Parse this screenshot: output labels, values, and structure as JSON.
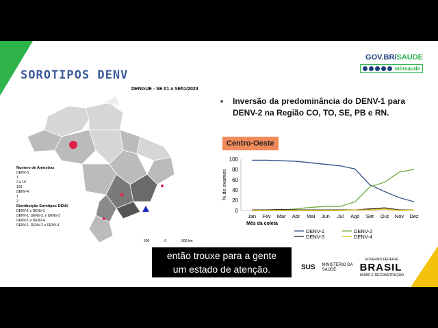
{
  "slide_title": "SOROTIPOS DENV",
  "gov": {
    "prefix": "GOV.BR/",
    "suffix": "SAUDE",
    "handle": "minsaude"
  },
  "map": {
    "title": "DENGUE - SE 01 a SE51/2023",
    "legend_title": "Numero de Amostras",
    "denv3_label": "DENV-3",
    "denv3_items": [
      "1",
      "2 a 10",
      "100"
    ],
    "denv4_label": "DENV-4",
    "denv4_items": [
      "1",
      "2"
    ],
    "dist_label": "Distribuição Sorotipos DENV",
    "dist_items": [
      "DENV-1 e DENV-2",
      "DENV-1, DENV-2, e DENV-3",
      "DENV-1 e DENV-4",
      "DENV-1, DENV-2 e DENV-4"
    ],
    "scale": [
      "500",
      "0",
      "500 km"
    ]
  },
  "bullet": {
    "mark": "▪",
    "text": "Inversão da predominância do DENV-1 para DENV-2 na Região CO, TO, SE, PB e RN."
  },
  "badge": "Centro-Oeste",
  "chart_data": {
    "type": "line",
    "title": "",
    "xlabel": "Mês da coleta",
    "ylabel": "% de exames",
    "ylim": [
      0,
      100
    ],
    "yticks": [
      0,
      20,
      40,
      60,
      80,
      100
    ],
    "categories": [
      "Jan",
      "Fev",
      "Mar",
      "Abr",
      "Mai",
      "Jun",
      "Jul",
      "Ago",
      "Set",
      "Out",
      "Nov",
      "Dez"
    ],
    "series": [
      {
        "name": "DENV-1",
        "color": "#3a5a8c",
        "values": [
          98,
          98,
          97,
          96,
          93,
          90,
          87,
          81,
          50,
          37,
          25,
          17
        ]
      },
      {
        "name": "DENV-2",
        "color": "#7ab04a",
        "values": [
          1,
          1,
          1,
          3,
          6,
          8,
          8,
          17,
          46,
          55,
          75,
          80
        ]
      },
      {
        "name": "DENV-3",
        "color": "#333333",
        "values": [
          1,
          1,
          2,
          1,
          1,
          1,
          1,
          1,
          3,
          5,
          1,
          1
        ]
      },
      {
        "name": "DENV-4",
        "color": "#e8c020",
        "values": [
          0,
          0,
          0,
          0,
          0,
          0,
          0,
          1,
          1,
          3,
          0,
          1
        ]
      }
    ],
    "legend_position": "bottom"
  },
  "caption": {
    "line1": "então trouxe para a gente",
    "line2": "um estado de atenção."
  },
  "logos": {
    "sus": "SUS",
    "ms_line1": "MINISTÉRIO DA",
    "ms_line2": "SAÚDE",
    "gf_top": "GOVERNO FEDERAL",
    "brasil": "BRASIL",
    "gf_bottom": "UNIÃO E RECONSTRUÇÃO"
  }
}
